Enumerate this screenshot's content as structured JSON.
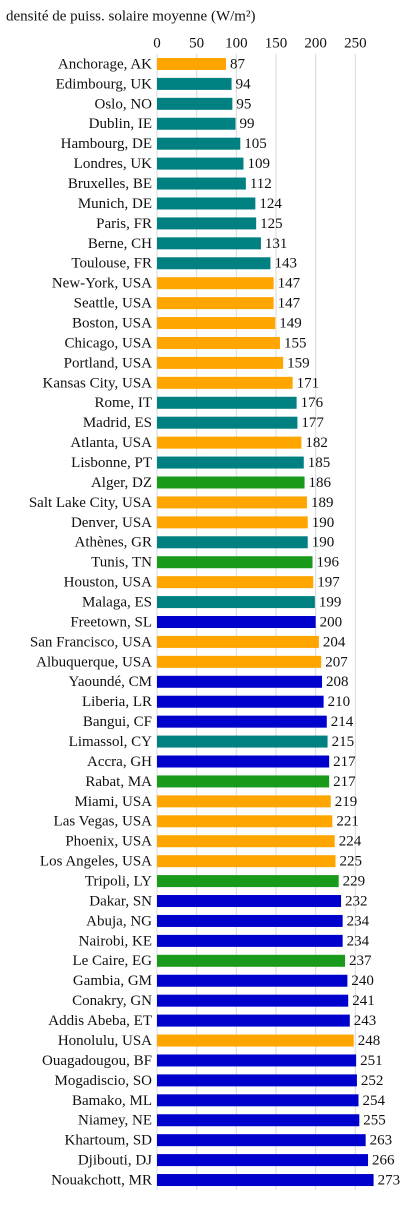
{
  "chart_data": {
    "type": "bar",
    "orientation": "horizontal",
    "title": "densité de puiss. solaire moyenne (W/m²)",
    "categories": [
      "Anchorage, AK",
      "Edimbourg, UK",
      "Oslo, NO",
      "Dublin, IE",
      "Hambourg, DE",
      "Londres, UK",
      "Bruxelles, BE",
      "Munich, DE",
      "Paris, FR",
      "Berne, CH",
      "Toulouse, FR",
      "New-York, USA",
      "Seattle, USA",
      "Boston, USA",
      "Chicago, USA",
      "Portland, USA",
      "Kansas City, USA",
      "Rome, IT",
      "Madrid, ES",
      "Atlanta, USA",
      "Lisbonne, PT",
      "Alger, DZ",
      "Salt Lake City, USA",
      "Denver, USA",
      "Athènes, GR",
      "Tunis, TN",
      "Houston, USA",
      "Malaga, ES",
      "Freetown, SL",
      "San Francisco, USA",
      "Albuquerque, USA",
      "Yaoundé, CM",
      "Liberia, LR",
      "Bangui, CF",
      "Limassol, CY",
      "Accra, GH",
      "Rabat, MA",
      "Miami, USA",
      "Las Vegas, USA",
      "Phoenix, USA",
      "Los Angeles, USA",
      "Tripoli, LY",
      "Dakar, SN",
      "Abuja, NG",
      "Nairobi, KE",
      "Le Caire, EG",
      "Gambia, GM",
      "Conakry, GN",
      "Addis Abeba, ET",
      "Honolulu, USA",
      "Ouagadougou, BF",
      "Mogadiscio, SO",
      "Bamako, ML",
      "Niamey, NE",
      "Khartoum, SD",
      "Djibouti, DJ",
      "Nouakchott, MR"
    ],
    "values": [
      87,
      94,
      95,
      99,
      105,
      109,
      112,
      124,
      125,
      131,
      143,
      147,
      147,
      149,
      155,
      159,
      171,
      176,
      177,
      182,
      185,
      186,
      189,
      190,
      190,
      196,
      197,
      199,
      200,
      204,
      207,
      208,
      210,
      214,
      215,
      217,
      217,
      219,
      221,
      224,
      225,
      229,
      232,
      234,
      234,
      237,
      240,
      241,
      243,
      248,
      251,
      252,
      254,
      255,
      263,
      266,
      273
    ],
    "colors": [
      "#ffa500",
      "#008080",
      "#008080",
      "#008080",
      "#008080",
      "#008080",
      "#008080",
      "#008080",
      "#008080",
      "#008080",
      "#008080",
      "#ffa500",
      "#ffa500",
      "#ffa500",
      "#ffa500",
      "#ffa500",
      "#ffa500",
      "#008080",
      "#008080",
      "#ffa500",
      "#008080",
      "#1a9a1a",
      "#ffa500",
      "#ffa500",
      "#008080",
      "#1a9a1a",
      "#ffa500",
      "#008080",
      "#0000cc",
      "#ffa500",
      "#ffa500",
      "#0000cc",
      "#0000cc",
      "#0000cc",
      "#008080",
      "#0000cc",
      "#1a9a1a",
      "#ffa500",
      "#ffa500",
      "#ffa500",
      "#ffa500",
      "#1a9a1a",
      "#0000cc",
      "#0000cc",
      "#0000cc",
      "#1a9a1a",
      "#0000cc",
      "#0000cc",
      "#0000cc",
      "#ffa500",
      "#0000cc",
      "#0000cc",
      "#0000cc",
      "#0000cc",
      "#0000cc",
      "#0000cc",
      "#0000cc"
    ],
    "xlim": [
      0,
      300
    ],
    "xticks": [
      0,
      50,
      100,
      150,
      200,
      250
    ],
    "grid": true
  }
}
